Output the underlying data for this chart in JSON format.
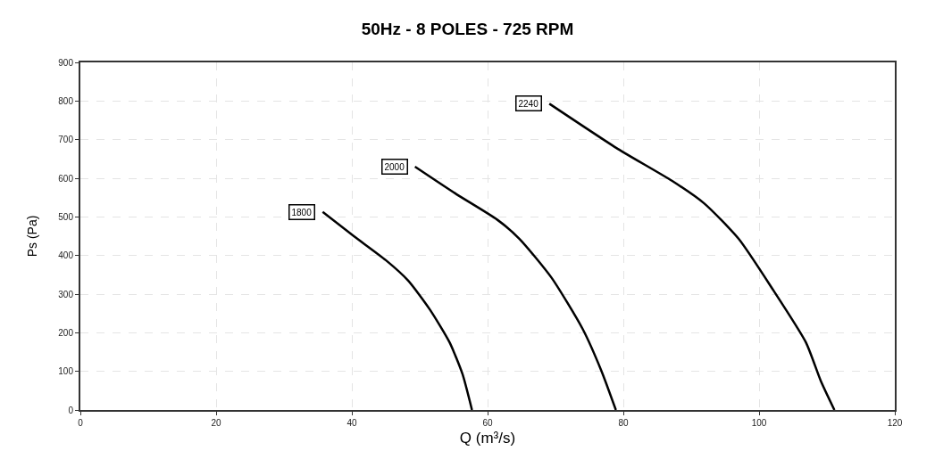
{
  "chart_data": {
    "type": "line",
    "title": "50Hz - 8 POLES - 725 RPM",
    "xlabel": "Q (m³/s)",
    "ylabel": "Ps (Pa)",
    "xlim": [
      0,
      120
    ],
    "xticks": [
      0,
      20,
      40,
      60,
      80,
      100,
      120
    ],
    "ylim": [
      0,
      900
    ],
    "yticks": [
      0,
      100,
      200,
      300,
      400,
      500,
      600,
      700,
      800,
      900
    ],
    "grid": true,
    "legend": false,
    "marker": "none",
    "line_style": "solid",
    "series": [
      {
        "name": "1800",
        "color": "#000000",
        "x": [
          35.7,
          40.3,
          45.0,
          48.3,
          51.5,
          54.4,
          56.3,
          57.7
        ],
        "values": [
          513,
          450,
          388,
          335,
          260,
          175,
          93,
          0
        ]
      },
      {
        "name": "2000",
        "color": "#000000",
        "x": [
          49.3,
          55.3,
          61.4,
          64.7,
          69.4,
          74.0,
          76.8,
          78.9
        ],
        "values": [
          630,
          560,
          493,
          443,
          343,
          210,
          100,
          0
        ]
      },
      {
        "name": "2240",
        "color": "#000000",
        "x": [
          69.1,
          79.2,
          87.2,
          91.9,
          97.0,
          102.1,
          106.9,
          109.1,
          111.1
        ],
        "values": [
          793,
          676,
          593,
          535,
          443,
          310,
          175,
          75,
          0
        ]
      }
    ]
  }
}
